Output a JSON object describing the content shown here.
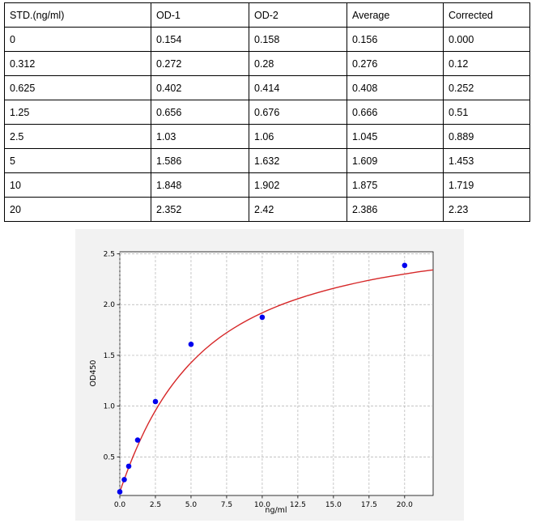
{
  "table": {
    "headers": [
      "STD.(ng/ml)",
      "OD-1",
      "OD-2",
      "Average",
      "Corrected"
    ],
    "rows": [
      [
        "0",
        "0.154",
        "0.158",
        "0.156",
        "0.000"
      ],
      [
        "0.312",
        "0.272",
        "0.28",
        "0.276",
        "0.12"
      ],
      [
        "0.625",
        "0.402",
        "0.414",
        "0.408",
        "0.252"
      ],
      [
        "1.25",
        "0.656",
        "0.676",
        "0.666",
        "0.51"
      ],
      [
        "2.5",
        "1.03",
        "1.06",
        "1.045",
        "0.889"
      ],
      [
        "5",
        "1.586",
        "1.632",
        "1.609",
        "1.453"
      ],
      [
        "10",
        "1.848",
        "1.902",
        "1.875",
        "1.719"
      ],
      [
        "20",
        "2.352",
        "2.42",
        "2.386",
        "2.23"
      ]
    ]
  },
  "chart_data": {
    "type": "scatter",
    "xlabel": "ng/ml",
    "ylabel": "OD450",
    "xlim": [
      0,
      22
    ],
    "ylim": [
      0.12,
      2.52
    ],
    "x_ticks": [
      "0.0",
      "2.5",
      "5.0",
      "7.5",
      "10.0",
      "12.5",
      "15.0",
      "17.5",
      "20.0"
    ],
    "y_ticks": [
      "0.5",
      "1.0",
      "1.5",
      "2.0",
      "2.5"
    ],
    "grid": true,
    "points": {
      "x": [
        0,
        0.312,
        0.625,
        1.25,
        2.5,
        5,
        10,
        20
      ],
      "y": [
        0.156,
        0.276,
        0.408,
        0.666,
        1.045,
        1.609,
        1.875,
        2.386
      ],
      "color": "#0000ee"
    },
    "fit_curve": {
      "color": "#d62728",
      "x": [
        0,
        0.25,
        0.5,
        0.75,
        1,
        1.5,
        2,
        2.5,
        3,
        3.5,
        4,
        4.5,
        5,
        6,
        7,
        8,
        9,
        10,
        11,
        12,
        13,
        14,
        15,
        16,
        17,
        18,
        19,
        20,
        21,
        22
      ],
      "y": [
        0.156,
        0.255,
        0.35,
        0.441,
        0.527,
        0.686,
        0.829,
        0.956,
        1.071,
        1.174,
        1.267,
        1.351,
        1.428,
        1.562,
        1.674,
        1.768,
        1.849,
        1.919,
        1.98,
        2.033,
        2.08,
        2.122,
        2.16,
        2.194,
        2.225,
        2.253,
        2.278,
        2.301,
        2.323,
        2.342
      ]
    }
  }
}
